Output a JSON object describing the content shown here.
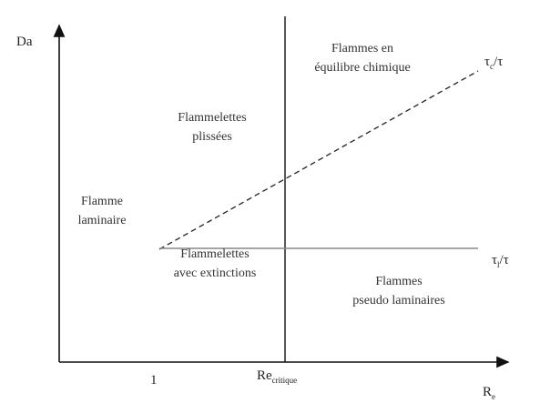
{
  "axes": {
    "y_label": "Da",
    "x_label": {
      "base": "R",
      "sub": "e"
    },
    "x_tick_1": "1",
    "x_tick_critical": {
      "base": "Re",
      "sub": "critique"
    }
  },
  "lines": {
    "chemical": {
      "base": "τ",
      "sub": "c",
      "rest": "/τ"
    },
    "kolmogorov": {
      "base": "τ",
      "sub": "l",
      "rest": "/τ"
    }
  },
  "regions": [
    {
      "lines": [
        "Flammes en",
        "équilibre chimique"
      ]
    },
    {
      "lines": [
        "Flammelettes",
        "plissées"
      ]
    },
    {
      "lines": [
        "Flamme",
        "laminaire"
      ]
    },
    {
      "lines": [
        "Flammelettes",
        "avec extinctions"
      ]
    },
    {
      "lines": [
        "Flammes",
        "pseudo laminaires"
      ]
    }
  ]
}
